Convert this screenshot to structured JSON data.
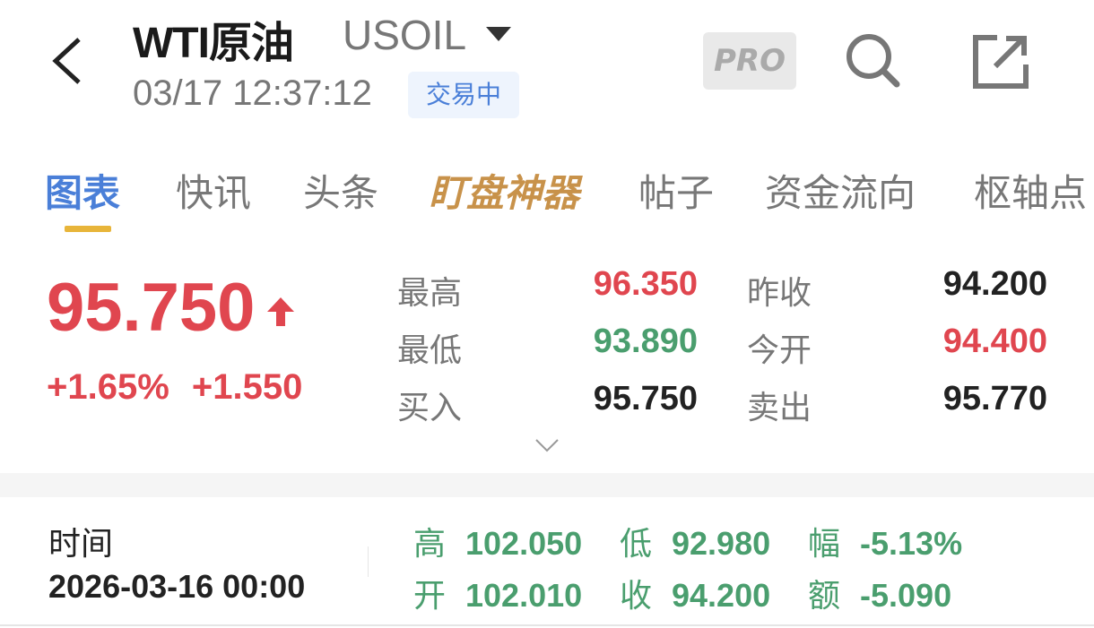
{
  "header": {
    "title": "WTI原油",
    "symbol": "USOIL",
    "time": "03/17 12:37:12",
    "status": "交易中",
    "pro_label": "PRO"
  },
  "tabs": [
    {
      "label": "图表",
      "active": true
    },
    {
      "label": "快讯"
    },
    {
      "label": "头条"
    },
    {
      "label": "盯盘神器"
    },
    {
      "label": "帖子"
    },
    {
      "label": "资金流向"
    },
    {
      "label": "枢轴点"
    }
  ],
  "quote": {
    "price": "95.750",
    "direction": "up",
    "change_pct": "+1.65%",
    "change": "+1.550",
    "high_label": "最高",
    "high": "96.350",
    "low_label": "最低",
    "low": "93.890",
    "bid_label": "买入",
    "bid": "95.750",
    "prev_close_label": "昨收",
    "prev_close": "94.200",
    "open_label": "今开",
    "open": "94.400",
    "ask_label": "卖出",
    "ask": "95.770"
  },
  "bar": {
    "time_label": "时间",
    "time": "2026-03-16 00:00",
    "high_label": "高",
    "high": "102.050",
    "low_label": "低",
    "low": "92.980",
    "amp_label": "幅",
    "amp": "-5.13%",
    "open_label": "开",
    "open": "102.010",
    "close_label": "收",
    "close": "94.200",
    "amt_label": "额",
    "amt": "-5.090"
  },
  "colors": {
    "up": "#e0464f",
    "down": "#4a9e6e",
    "accent": "#4a7fd8",
    "tab_indicator": "#e8b53a"
  }
}
